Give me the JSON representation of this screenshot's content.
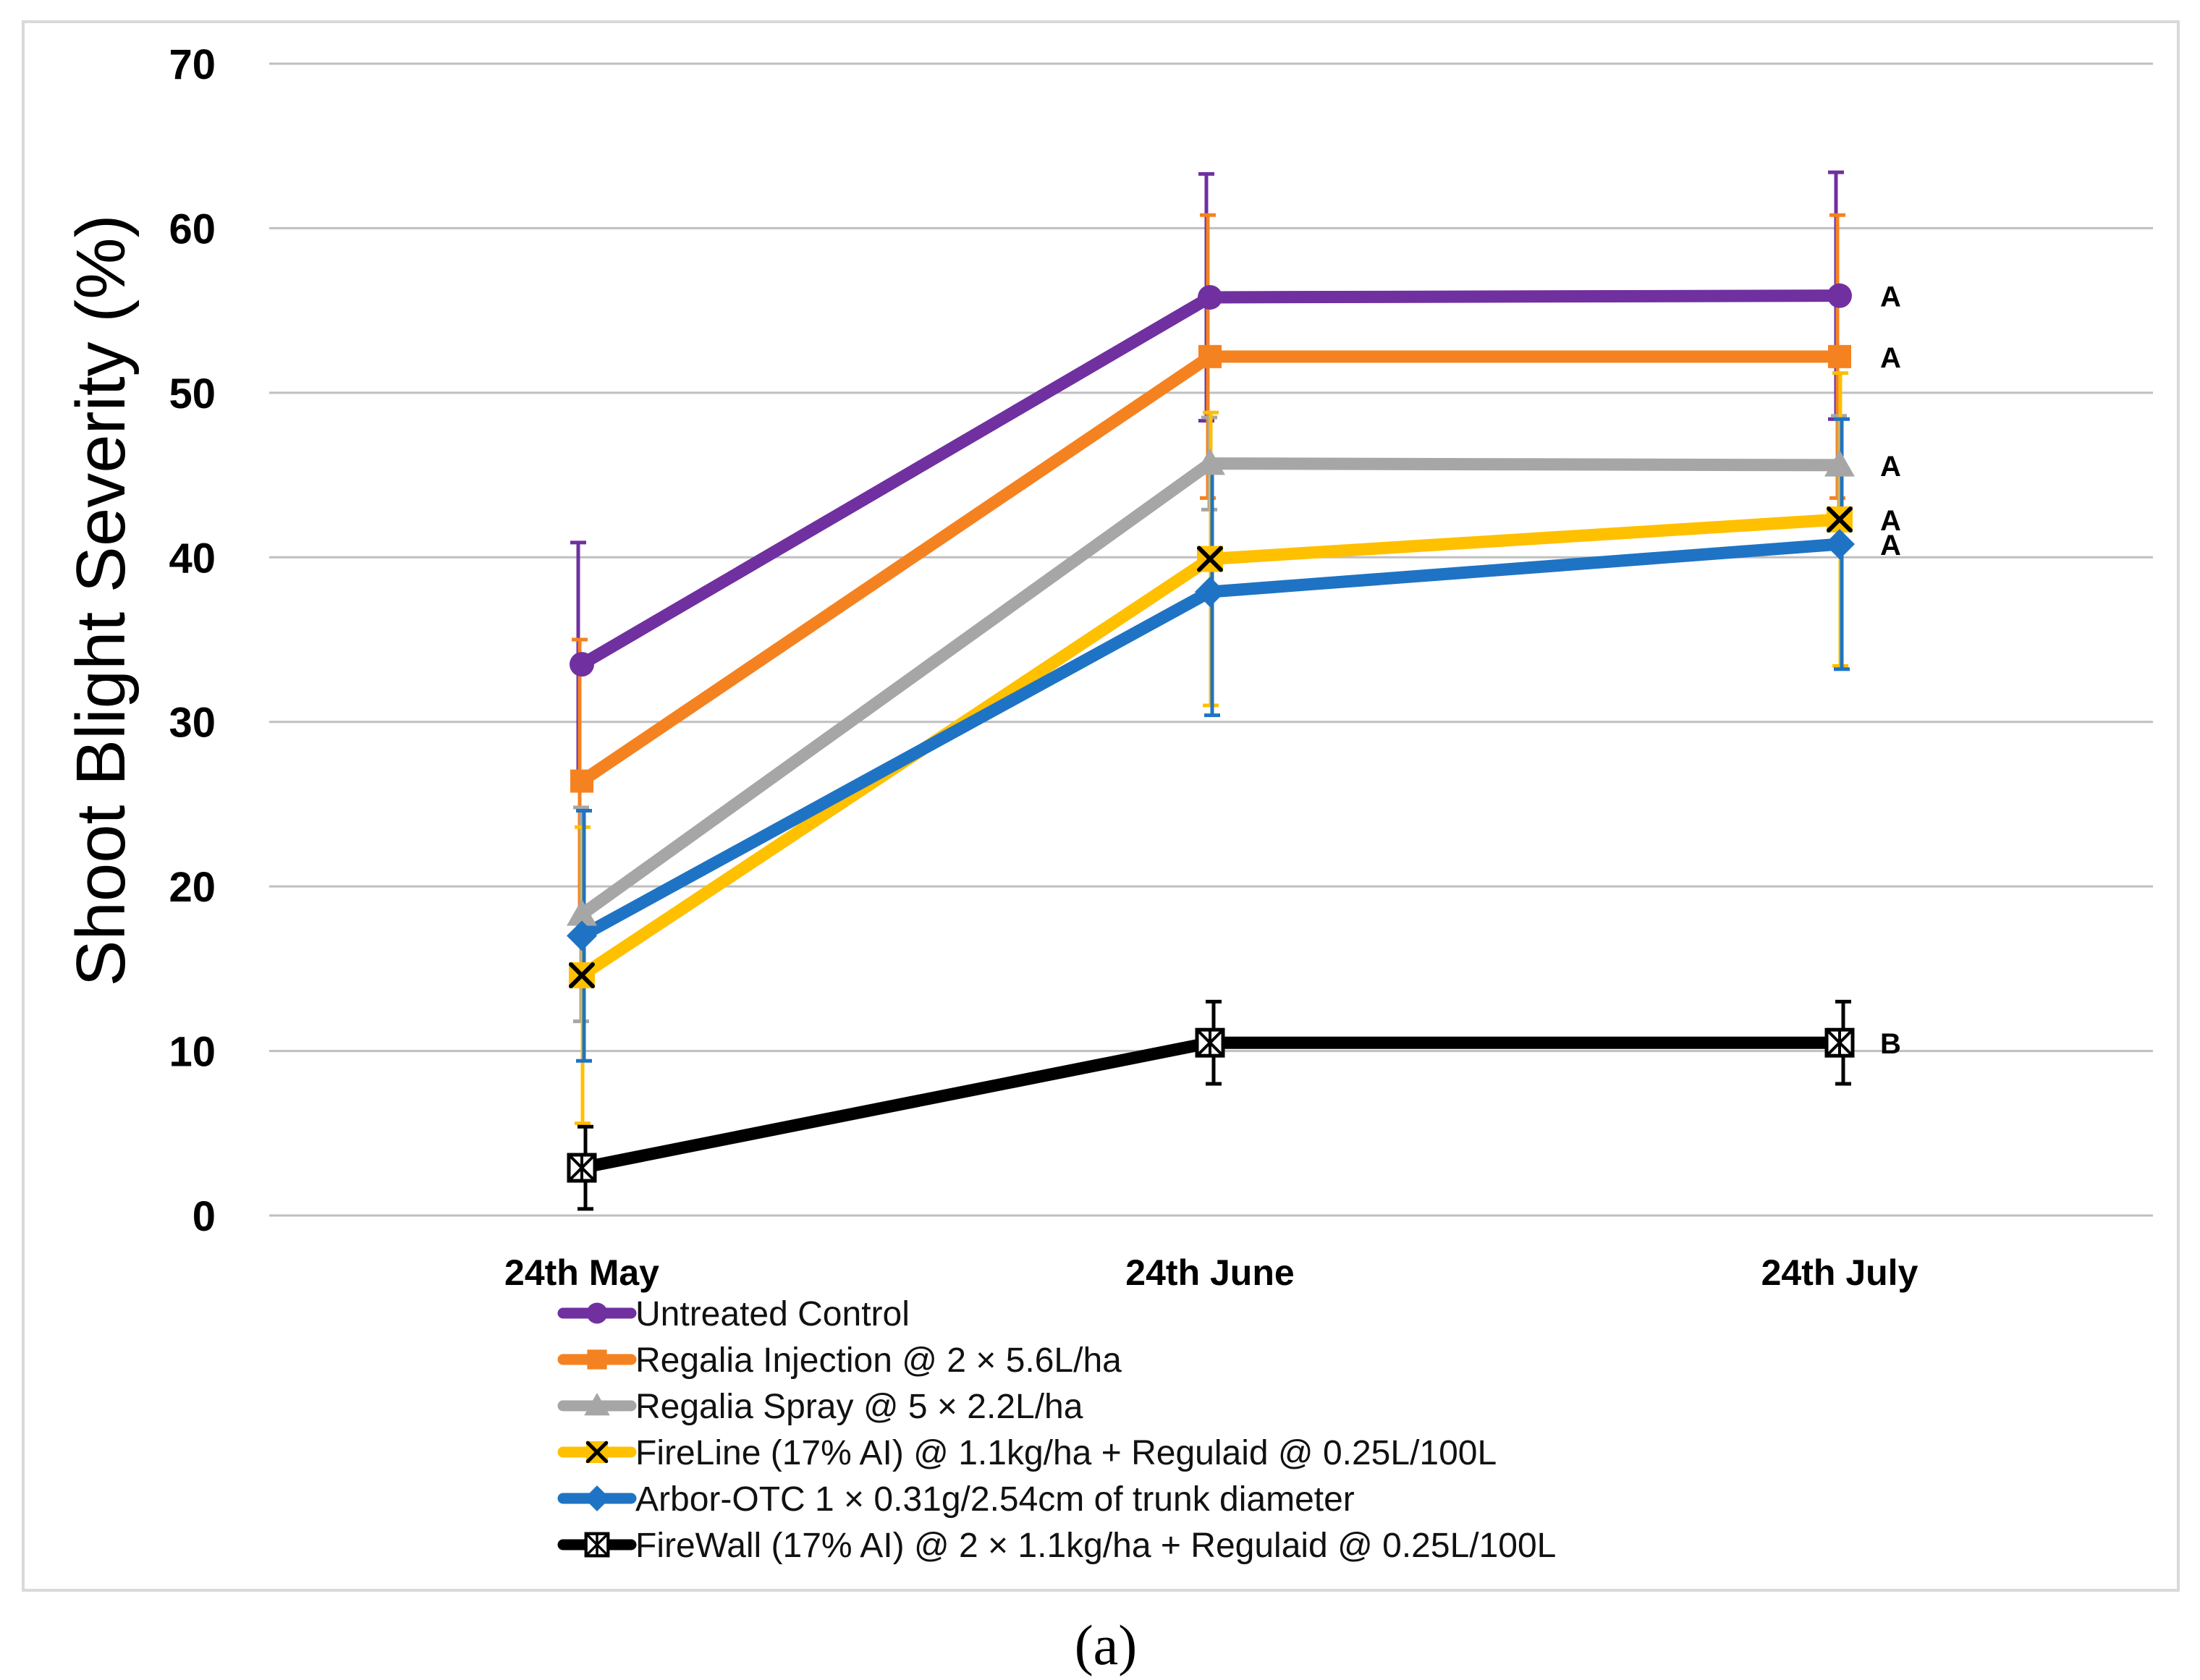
{
  "chart_data": {
    "type": "line",
    "ylabel": "Shoot Blight Severity (%)",
    "xlabel": "",
    "ylim": [
      0,
      70
    ],
    "yticks": [
      0,
      10,
      20,
      30,
      40,
      50,
      60,
      70
    ],
    "grid": true,
    "legend_position": "bottom",
    "categories": [
      "24th May",
      "24th June",
      "24th July"
    ],
    "series": [
      {
        "name": "Untreated Control",
        "color": "#7030A0",
        "marker": "circle",
        "values": [
          33.5,
          55.8,
          55.9
        ],
        "errors": [
          7.4,
          7.5,
          7.5
        ],
        "significance": "A"
      },
      {
        "name": "Regalia Injection @ 2 × 5.6L/ha",
        "color": "#F58220",
        "marker": "square",
        "values": [
          26.4,
          52.2,
          52.2
        ],
        "errors": [
          8.6,
          8.6,
          8.6
        ],
        "significance": "A"
      },
      {
        "name": "Regalia Spray @ 5 × 2.2L/ha",
        "color": "#A6A6A6",
        "marker": "triangle",
        "values": [
          18.3,
          45.7,
          45.6
        ],
        "errors": [
          6.5,
          2.8,
          3.0
        ],
        "significance": "A"
      },
      {
        "name": "FireLine (17% AI) @ 1.1kg/ha + Regulaid @ 0.25L/100L",
        "color": "#FFC000",
        "marker": "x",
        "values": [
          14.6,
          39.9,
          42.3
        ],
        "errors": [
          9.0,
          8.9,
          8.9
        ],
        "significance": "A"
      },
      {
        "name": "Arbor-OTC 1 × 0.31g/2.54cm of trunk diameter",
        "color": "#1F73C4",
        "marker": "diamond",
        "values": [
          17.0,
          37.9,
          40.8
        ],
        "errors": [
          7.6,
          7.5,
          7.6
        ],
        "significance": "A"
      },
      {
        "name": "FireWall (17% AI) @ 2 × 1.1kg/ha + Regulaid @ 0.25L/100L",
        "color": "#000000",
        "marker": "star-square",
        "values": [
          2.9,
          10.5,
          10.5
        ],
        "errors": [
          2.5,
          2.5,
          2.5
        ],
        "significance": "B"
      }
    ]
  },
  "caption": "(a)"
}
